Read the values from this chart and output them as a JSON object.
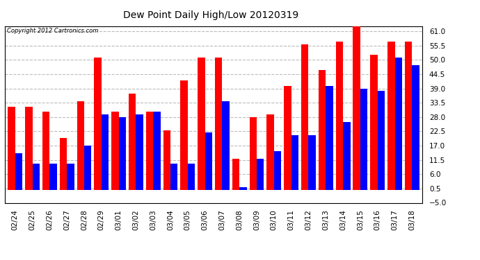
{
  "title": "Dew Point Daily High/Low 20120319",
  "copyright": "Copyright 2012 Cartronics.com",
  "dates": [
    "02/24",
    "02/25",
    "02/26",
    "02/27",
    "02/28",
    "02/29",
    "03/01",
    "03/02",
    "03/03",
    "03/04",
    "03/05",
    "03/06",
    "03/07",
    "03/08",
    "03/09",
    "03/10",
    "03/11",
    "03/12",
    "03/13",
    "03/14",
    "03/15",
    "03/16",
    "03/17",
    "03/18"
  ],
  "high": [
    32,
    32,
    30,
    20,
    34,
    51,
    30,
    37,
    30,
    23,
    42,
    51,
    51,
    12,
    28,
    29,
    40,
    56,
    46,
    57,
    63,
    52,
    57,
    57
  ],
  "low": [
    14,
    10,
    10,
    10,
    17,
    29,
    28,
    29,
    30,
    10,
    10,
    22,
    34,
    1,
    12,
    15,
    21,
    21,
    40,
    26,
    39,
    38,
    51,
    48
  ],
  "high_color": "#FF0000",
  "low_color": "#0000FF",
  "bg_color": "#FFFFFF",
  "plot_bg_color": "#FFFFFF",
  "grid_color": "#BBBBBB",
  "ylim_min": -5.0,
  "ylim_max": 63.0,
  "yticks": [
    -5.0,
    0.5,
    6.0,
    11.5,
    17.0,
    22.5,
    28.0,
    33.5,
    39.0,
    44.5,
    50.0,
    55.5,
    61.0
  ],
  "bar_width": 0.42,
  "figwidth": 6.9,
  "figheight": 3.75,
  "dpi": 100
}
